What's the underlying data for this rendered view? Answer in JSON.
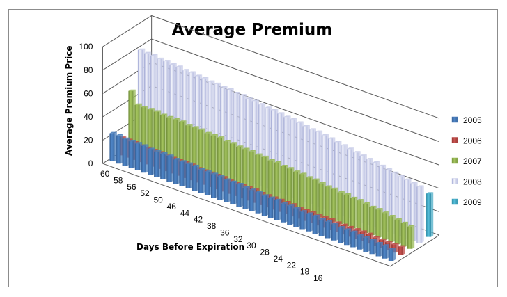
{
  "chart_data": {
    "type": "bar",
    "subtype": "3d-column",
    "title": "Average Premium",
    "xlabel": "Days Before Expiration",
    "ylabel": "Average Premium Price",
    "ylim": [
      0,
      100
    ],
    "yticks": [
      0,
      20,
      40,
      60,
      80,
      100
    ],
    "grid": true,
    "legend_position": "right",
    "x": [
      60,
      59,
      58,
      57,
      56,
      55,
      54,
      53,
      52,
      51,
      50,
      49,
      48,
      47,
      46,
      45,
      44,
      43,
      42,
      41,
      40,
      39,
      38,
      37,
      36,
      35,
      34,
      33,
      32,
      31,
      30,
      29,
      28,
      27,
      26,
      25,
      24,
      23,
      22,
      21,
      20,
      19,
      18,
      17,
      16
    ],
    "x_tick_labels": [
      "60",
      "58",
      "56",
      "52",
      "50",
      "46",
      "44",
      "42",
      "38",
      "36",
      "32",
      "30",
      "28",
      "24",
      "22",
      "18",
      "16"
    ],
    "series": [
      {
        "name": "2005",
        "color": "#4a7ebb",
        "values": [
          24,
          24,
          23,
          23,
          23,
          23,
          22,
          22,
          22,
          22,
          21,
          21,
          21,
          21,
          20,
          20,
          20,
          20,
          19,
          19,
          19,
          18,
          18,
          18,
          17,
          17,
          17,
          16,
          16,
          16,
          15,
          15,
          15,
          14,
          14,
          14,
          13,
          13,
          13,
          12,
          12,
          12,
          11,
          11,
          10
        ]
      },
      {
        "name": "2006",
        "color": "#be4b48",
        "values": [
          15,
          15,
          15,
          14,
          14,
          14,
          14,
          13,
          13,
          13,
          13,
          13,
          12,
          12,
          12,
          12,
          12,
          11,
          11,
          11,
          11,
          11,
          10,
          10,
          10,
          10,
          10,
          10,
          9,
          9,
          9,
          9,
          9,
          9,
          8,
          8,
          8,
          8,
          8,
          8,
          7,
          7,
          7,
          7,
          7
        ]
      },
      {
        "name": "2007",
        "color": "#98b954",
        "values": [
          50,
          40,
          40,
          40,
          40,
          39,
          39,
          39,
          39,
          38,
          38,
          38,
          37,
          37,
          37,
          36,
          36,
          35,
          35,
          35,
          34,
          34,
          33,
          33,
          32,
          32,
          31,
          31,
          30,
          30,
          29,
          28,
          28,
          27,
          27,
          26,
          26,
          25,
          24,
          24,
          23,
          22,
          21,
          20,
          19
        ]
      },
      {
        "name": "2008",
        "color": "#c8cce8",
        "values": [
          80,
          79,
          79,
          78,
          78,
          77,
          77,
          76,
          76,
          75,
          75,
          74,
          74,
          73,
          73,
          72,
          72,
          71,
          71,
          70,
          69,
          69,
          68,
          67,
          67,
          66,
          65,
          64,
          64,
          63,
          62,
          61,
          60,
          59,
          58,
          57,
          56,
          55,
          54,
          53,
          52,
          51,
          50,
          49,
          48
        ]
      },
      {
        "name": "2009",
        "color": "#4bacc6",
        "values": [
          null,
          null,
          null,
          null,
          null,
          null,
          null,
          null,
          null,
          null,
          null,
          null,
          null,
          null,
          null,
          null,
          null,
          null,
          null,
          null,
          null,
          null,
          null,
          null,
          null,
          null,
          null,
          null,
          null,
          null,
          null,
          null,
          null,
          null,
          null,
          null,
          null,
          null,
          null,
          null,
          null,
          null,
          null,
          null,
          37
        ]
      }
    ]
  }
}
